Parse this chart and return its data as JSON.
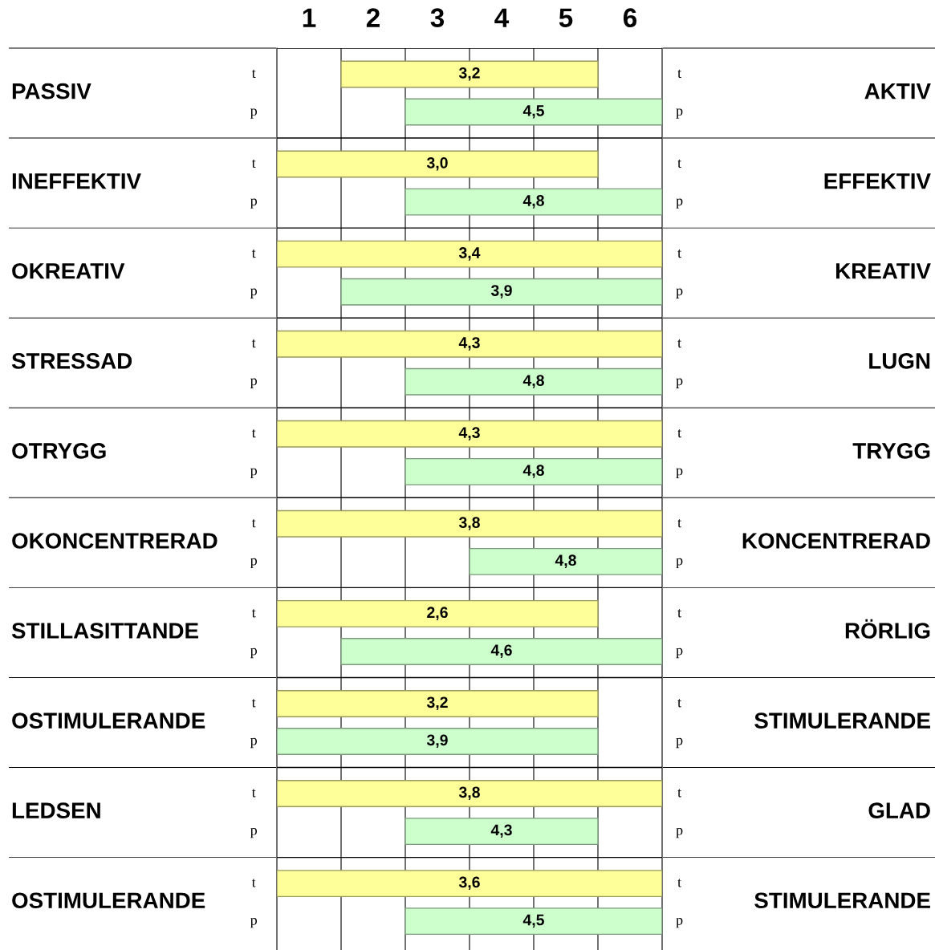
{
  "chart_data": {
    "type": "bar",
    "orientation": "horizontal",
    "legend": false,
    "grid": "y",
    "categories": [
      "PASSIV",
      "INEFFEKTIV",
      "OKREATIV",
      "STRESSAD",
      "OTRYGG",
      "OKONCENTRERAD",
      "STILLASITTANDE",
      "OSTIMULERANDE",
      "LEDSEN",
      "OSTIMULERANDE"
    ],
    "y2_categories": [
      "AKTIV",
      "EFFEKTIV",
      "KREATIV",
      "LUGN",
      "TRYGG",
      "KONCENTRERAD",
      "RÖRLIG",
      "STIMULERANDE",
      "GLAD",
      "STIMULERANDE"
    ],
    "series": [
      {
        "name": "t",
        "color": "#ffff99",
        "base": [
          1.5,
          0.5,
          0.5,
          0.5,
          0.5,
          0.5,
          0.5,
          0.5,
          0.5,
          0.5
        ],
        "values": [
          4,
          5,
          6,
          6,
          6,
          6,
          5,
          5,
          6,
          6
        ]
      },
      {
        "name": "p",
        "color": "#ccffcc",
        "base": [
          2.5,
          2.5,
          1.5,
          2.5,
          2.5,
          3.5,
          1.5,
          0.5,
          2.5,
          2.5
        ],
        "values": [
          4,
          4,
          5,
          4,
          4,
          3,
          5,
          5,
          3,
          4
        ]
      }
    ],
    "xlim": [
      0.5,
      6.5
    ],
    "xticks": [
      1,
      2,
      3,
      4,
      5,
      6
    ],
    "ref_lines": [
      {
        "axis": "x",
        "value": 1.5,
        "color": "#000000"
      },
      {
        "axis": "x",
        "value": 2.5,
        "color": "#000000"
      },
      {
        "axis": "x",
        "value": 3.5,
        "color": "#000000"
      },
      {
        "axis": "x",
        "value": 4.5,
        "color": "#000000"
      },
      {
        "axis": "x",
        "value": 5.5,
        "color": "#000000"
      }
    ],
    "annotations": [
      "3,2",
      "4,5",
      "3,0",
      "4,8",
      "3,4",
      "3,9",
      "4,3",
      "4,8",
      "4,3",
      "4,8",
      "3,8",
      "4,8",
      "2,6",
      "4,6",
      "3,2",
      "3,9",
      "3,8",
      "4,3",
      "3,6",
      "4,5"
    ]
  }
}
